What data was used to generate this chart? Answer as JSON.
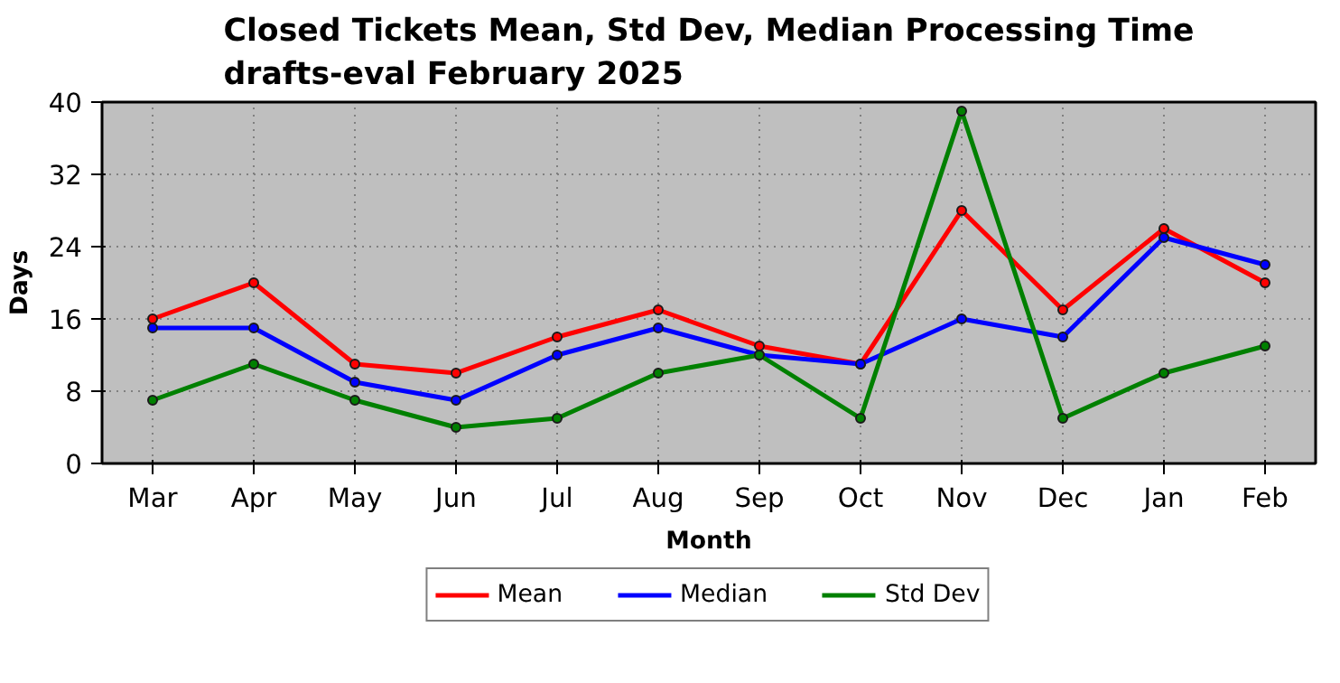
{
  "chart_data": {
    "type": "line",
    "title": "Closed Tickets Mean, Std Dev, Median Processing Time\ndrafts-eval February 2025",
    "xlabel": "Month",
    "ylabel": "Days",
    "categories": [
      "Mar",
      "Apr",
      "May",
      "Jun",
      "Jul",
      "Aug",
      "Sep",
      "Oct",
      "Nov",
      "Dec",
      "Jan",
      "Feb"
    ],
    "series": [
      {
        "name": "Mean",
        "color": "#ff0000",
        "values": [
          16,
          20,
          11,
          10,
          14,
          17,
          13,
          11,
          28,
          17,
          26,
          20
        ]
      },
      {
        "name": "Median",
        "color": "#0000ff",
        "values": [
          15,
          15,
          9,
          7,
          12,
          15,
          12,
          11,
          16,
          14,
          25,
          22
        ]
      },
      {
        "name": "Std Dev",
        "color": "#008000",
        "values": [
          7,
          11,
          7,
          4,
          5,
          10,
          12,
          5,
          39,
          5,
          10,
          13
        ]
      }
    ],
    "ylim": [
      0,
      40
    ],
    "yticks": [
      0,
      8,
      16,
      24,
      32,
      40
    ],
    "grid": true,
    "legend": "bottom",
    "marker": "circle",
    "line_style": "solid"
  }
}
